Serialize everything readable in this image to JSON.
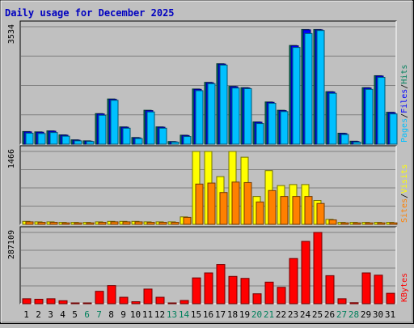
{
  "chart_data": {
    "type": "bar",
    "title": "Daily usage for December 2025",
    "categories": [
      "1",
      "2",
      "3",
      "4",
      "5",
      "6",
      "7",
      "8",
      "9",
      "10",
      "11",
      "12",
      "13",
      "14",
      "15",
      "16",
      "17",
      "18",
      "19",
      "20",
      "21",
      "22",
      "23",
      "24",
      "25",
      "26",
      "27",
      "28",
      "29",
      "30",
      "31"
    ],
    "weekend_days": [
      "6",
      "7",
      "13",
      "14",
      "20",
      "21",
      "27",
      "28"
    ],
    "panels": [
      {
        "id": "hits",
        "ymax_label": "3534",
        "ymax": 3534,
        "legend": [
          "Pages",
          "/",
          "Files",
          "/",
          "Hits"
        ],
        "series": [
          {
            "name": "Hits",
            "color": "#00805c",
            "values": [
              380,
              370,
              400,
              280,
              130,
              100,
              920,
              1360,
              520,
              200,
              1020,
              520,
              80,
              270,
              1660,
              1860,
              2420,
              1740,
              1700,
              670,
              1270,
              1020,
              2970,
              3450,
              3450,
              1580,
              330,
              90,
              1700,
              2060,
              960
            ]
          },
          {
            "name": "Files",
            "color": "#0000ff",
            "values": [
              370,
              360,
              390,
              270,
              120,
              90,
              910,
              1350,
              510,
              190,
              1010,
              510,
              70,
              260,
              1650,
              1850,
              2410,
              1730,
              1690,
              660,
              1260,
              1010,
              2960,
              3440,
              3440,
              1570,
              320,
              80,
              1690,
              2050,
              950
            ]
          },
          {
            "name": "Pages",
            "color": "#00c0ff",
            "values": [
              330,
              320,
              350,
              240,
              100,
              80,
              870,
              1320,
              480,
              170,
              970,
              480,
              60,
              230,
              1610,
              1820,
              2380,
              1690,
              1670,
              620,
              1230,
              980,
              2910,
              3330,
              3420,
              1530,
              290,
              60,
              1650,
              2010,
              910
            ]
          }
        ]
      },
      {
        "id": "visits",
        "ymax_label": "1466",
        "ymax": 1466,
        "legend": [
          "Sites",
          "/",
          "Visits"
        ],
        "series": [
          {
            "name": "Visits",
            "color": "#ffff00",
            "values": [
              60,
              50,
              50,
              40,
              40,
              40,
              50,
              60,
              60,
              60,
              50,
              50,
              50,
              150,
              1466,
              1466,
              960,
              1466,
              1350,
              560,
              1080,
              780,
              800,
              800,
              480,
              100,
              40,
              40,
              40,
              40,
              40
            ]
          },
          {
            "name": "Sites",
            "color": "#ff8000",
            "values": [
              50,
              40,
              40,
              30,
              30,
              30,
              40,
              50,
              50,
              50,
              40,
              40,
              40,
              140,
              810,
              830,
              640,
              850,
              840,
              450,
              680,
              560,
              560,
              560,
              420,
              90,
              30,
              30,
              30,
              30,
              30
            ]
          }
        ]
      },
      {
        "id": "kbytes",
        "ymax_label": "287109",
        "ymax": 287109,
        "legend": [
          "KBytes"
        ],
        "series": [
          {
            "name": "KBytes",
            "color": "#ff0000",
            "values": [
              20000,
              18000,
              20000,
              12000,
              3000,
              3000,
              50000,
              73000,
              26000,
              8000,
              59000,
              26000,
              3000,
              13000,
              104000,
              124000,
              158000,
              110000,
              102000,
              40000,
              87000,
              66000,
              182000,
              251000,
              287109,
              113000,
              20000,
              4000,
              124000,
              115000,
              42000
            ]
          }
        ]
      }
    ],
    "colors": {
      "title": "#0000c0",
      "background": "#c0c0c0",
      "plot_background": "#c0c0c0",
      "axis_text": "#000000",
      "weekend_text": "#00805c",
      "gridline": "#808080"
    }
  }
}
